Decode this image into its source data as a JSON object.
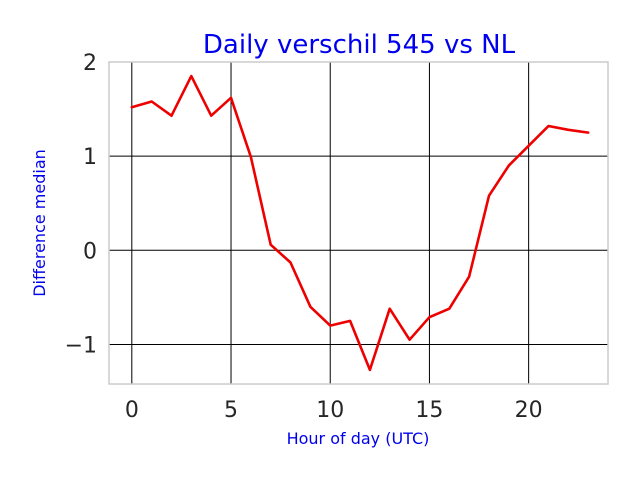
{
  "chart_data": {
    "type": "line",
    "title": "Daily verschil 545 vs NL",
    "xlabel": "Hour of day (UTC)",
    "ylabel": "Difference median",
    "xlim": [
      -1.15,
      24
    ],
    "ylim": [
      -1.42,
      2.0
    ],
    "x_ticks": [
      0,
      5,
      10,
      15,
      20
    ],
    "y_ticks": [
      2,
      1,
      0,
      -1
    ],
    "x_tick_labels": [
      "0",
      "5",
      "10",
      "15",
      "20"
    ],
    "y_tick_labels": [
      "2",
      "1",
      "0",
      "−1"
    ],
    "grid": true,
    "colors": {
      "line": "#ee0000",
      "title": "#0000ee",
      "grid": "#000000"
    },
    "series": [
      {
        "x": [
          0,
          1,
          2,
          3,
          4,
          5,
          6,
          7,
          8,
          9,
          10,
          11,
          12,
          13,
          14,
          15,
          16,
          17,
          18,
          19,
          20,
          21,
          22,
          23
        ],
        "values": [
          1.52,
          1.58,
          1.43,
          1.85,
          1.43,
          1.62,
          0.99,
          0.06,
          -0.13,
          -0.6,
          -0.8,
          -0.75,
          -1.27,
          -0.62,
          -0.95,
          -0.71,
          -0.62,
          -0.28,
          0.58,
          0.9,
          1.11,
          1.32,
          1.28,
          1.25
        ]
      }
    ]
  }
}
